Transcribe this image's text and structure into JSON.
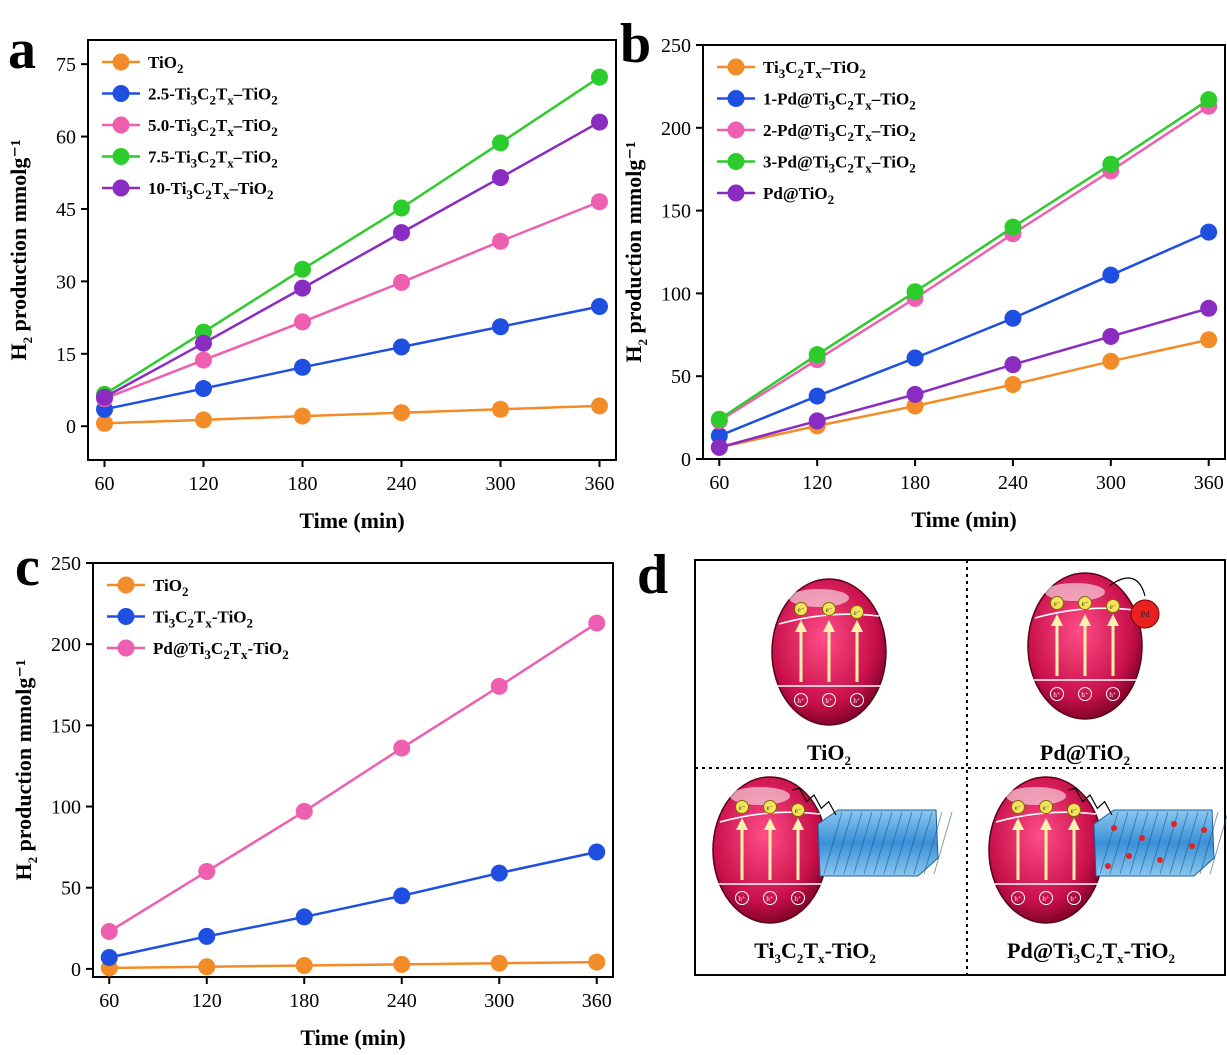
{
  "panel_labels": {
    "a": "a",
    "b": "b",
    "c": "c",
    "d": "d"
  },
  "colors": {
    "orange": "#f28c28",
    "blue": "#1f4fe0",
    "pink": "#ee5fb0",
    "green": "#2ccc2c",
    "purple": "#8a2bc2",
    "particle": "#c8104a",
    "mxene": "#3a90d8",
    "pd": "#e82020"
  },
  "chart_data": [
    {
      "id": "a",
      "type": "line",
      "xlabel": "Time (min)",
      "ylabel": "H2 production mmolg⁻¹",
      "xlim": [
        50,
        370
      ],
      "ylim": [
        -7,
        80
      ],
      "xticks": [
        60,
        120,
        180,
        240,
        300,
        360
      ],
      "yticks": [
        0,
        15,
        30,
        45,
        60,
        75
      ],
      "grid": false,
      "legend_position": "top-left",
      "x": [
        60,
        120,
        180,
        240,
        300,
        360
      ],
      "series": [
        {
          "name": "TiO2",
          "color": "orange",
          "values": [
            0.6,
            1.3,
            2.1,
            2.8,
            3.5,
            4.2
          ]
        },
        {
          "name": "2.5-Ti3C2Tx–TiO2",
          "color": "blue",
          "values": [
            3.5,
            7.8,
            12.2,
            16.4,
            20.6,
            24.8
          ]
        },
        {
          "name": "5.0-Ti3C2Tx–TiO2",
          "color": "pink",
          "values": [
            5.7,
            13.7,
            21.6,
            29.8,
            38.3,
            46.5
          ]
        },
        {
          "name": "7.5-Ti3C2Tx–TiO2",
          "color": "green",
          "values": [
            6.6,
            19.5,
            32.5,
            45.2,
            58.7,
            72.3
          ]
        },
        {
          "name": "10-Ti3C2Tx–TiO2",
          "color": "purple",
          "values": [
            6.0,
            17.2,
            28.6,
            40.1,
            51.5,
            63.0
          ]
        }
      ]
    },
    {
      "id": "b",
      "type": "line",
      "xlabel": "Time (min)",
      "ylabel": "H2 production mmolg⁻¹",
      "xlim": [
        50,
        370
      ],
      "ylim": [
        0,
        250
      ],
      "xticks": [
        60,
        120,
        180,
        240,
        300,
        360
      ],
      "yticks": [
        0,
        50,
        100,
        150,
        200,
        250
      ],
      "grid": false,
      "legend_position": "top-left",
      "x": [
        60,
        120,
        180,
        240,
        300,
        360
      ],
      "series": [
        {
          "name": "Ti3C2Tx–TiO2",
          "color": "orange",
          "values": [
            7,
            20,
            32,
            45,
            59,
            72
          ]
        },
        {
          "name": "1-Pd@Ti3C2Tx–TiO2",
          "color": "blue",
          "values": [
            14,
            38,
            61,
            85,
            111,
            137
          ]
        },
        {
          "name": "2-Pd@Ti3C2Tx–TiO2",
          "color": "pink",
          "values": [
            23,
            60,
            97,
            136,
            174,
            213
          ]
        },
        {
          "name": "3-Pd@Ti3C2Tx–TiO2",
          "color": "green",
          "values": [
            24,
            63,
            101,
            140,
            178,
            217
          ]
        },
        {
          "name": "Pd@TiO2",
          "color": "purple",
          "values": [
            7,
            23,
            39,
            57,
            74,
            91
          ]
        }
      ]
    },
    {
      "id": "c",
      "type": "line",
      "xlabel": "Time (min)",
      "ylabel": "H2 production mmolg⁻¹",
      "xlim": [
        50,
        370
      ],
      "ylim": [
        -5,
        250
      ],
      "xticks": [
        60,
        120,
        180,
        240,
        300,
        360
      ],
      "yticks": [
        0,
        50,
        100,
        150,
        200,
        250
      ],
      "grid": false,
      "legend_position": "top-left",
      "x": [
        60,
        120,
        180,
        240,
        300,
        360
      ],
      "series": [
        {
          "name": "TiO2",
          "color": "orange",
          "values": [
            0.6,
            1.3,
            2.1,
            2.8,
            3.5,
            4.2
          ]
        },
        {
          "name": "Ti3C2Tx-TiO2",
          "color": "blue",
          "values": [
            7,
            20,
            32,
            45,
            59,
            72
          ]
        },
        {
          "name": "Pd@Ti3C2Tx-TiO2",
          "color": "pink",
          "values": [
            23,
            60,
            97,
            136,
            174,
            213
          ]
        }
      ]
    }
  ],
  "panel_d": {
    "cells": [
      {
        "caption": "TiO2",
        "variant": "plain"
      },
      {
        "caption": "Pd@TiO2",
        "variant": "pd"
      },
      {
        "caption": "Ti3C2Tx-TiO2",
        "variant": "mxene"
      },
      {
        "caption": "Pd@Ti3C2Tx-TiO2",
        "variant": "pd-mxene"
      }
    ],
    "electron_symbol": "e⁻",
    "hole_symbol": "h⁺",
    "pd_label": "Pd"
  }
}
